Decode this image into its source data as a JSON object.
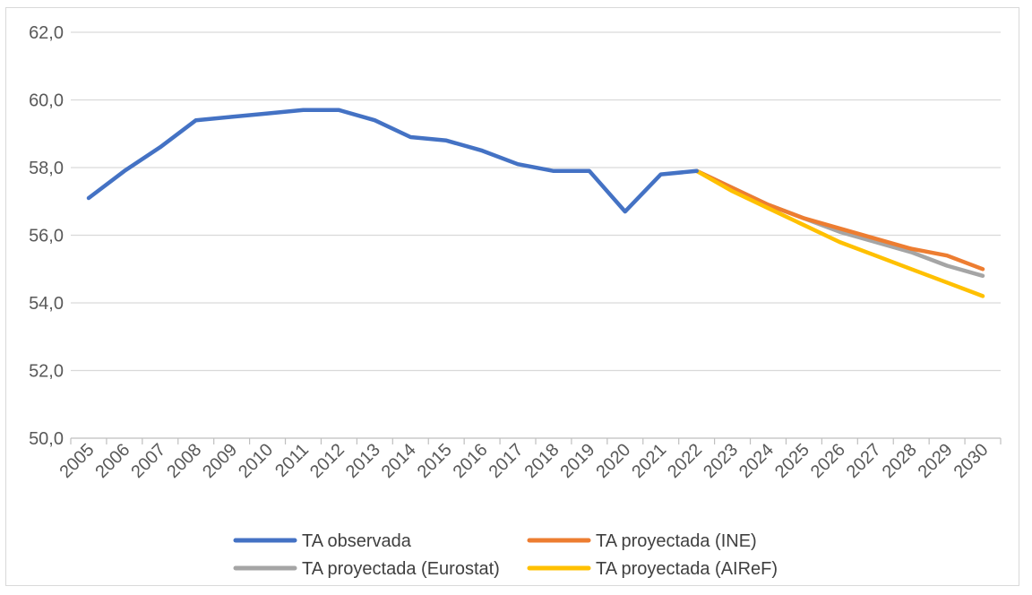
{
  "chart_data": {
    "type": "line",
    "title": "",
    "xlabel": "",
    "ylabel": "",
    "ylim": [
      50,
      62
    ],
    "y_ticks": [
      "50,0",
      "52,0",
      "54,0",
      "56,0",
      "58,0",
      "60,0",
      "62,0"
    ],
    "y_tick_values": [
      50,
      52,
      54,
      56,
      58,
      60,
      62
    ],
    "categories": [
      "2005",
      "2006",
      "2007",
      "2008",
      "2009",
      "2010",
      "2011",
      "2012",
      "2013",
      "2014",
      "2015",
      "2016",
      "2017",
      "2018",
      "2019",
      "2020",
      "2021",
      "2022",
      "2023",
      "2024",
      "2025",
      "2026",
      "2027",
      "2028",
      "2029",
      "2030"
    ],
    "grid": true,
    "legend_position": "bottom",
    "series": [
      {
        "name": "TA observada",
        "color": "#4472c4",
        "values": [
          57.1,
          57.9,
          58.6,
          59.4,
          59.5,
          59.6,
          59.7,
          59.7,
          59.4,
          58.9,
          58.8,
          58.5,
          58.1,
          57.9,
          57.9,
          56.7,
          57.8,
          57.9,
          null,
          null,
          null,
          null,
          null,
          null,
          null,
          null
        ]
      },
      {
        "name": "TA proyectada (INE)",
        "color": "#ed7d31",
        "values": [
          null,
          null,
          null,
          null,
          null,
          null,
          null,
          null,
          null,
          null,
          null,
          null,
          null,
          null,
          null,
          null,
          null,
          57.9,
          57.4,
          56.9,
          56.5,
          56.2,
          55.9,
          55.6,
          55.4,
          55.0
        ]
      },
      {
        "name": "TA proyectada (Eurostat)",
        "color": "#a5a5a5",
        "values": [
          null,
          null,
          null,
          null,
          null,
          null,
          null,
          null,
          null,
          null,
          null,
          null,
          null,
          null,
          null,
          null,
          null,
          57.9,
          57.4,
          56.9,
          56.5,
          56.1,
          55.8,
          55.5,
          55.1,
          54.8
        ]
      },
      {
        "name": "TA proyectada (AIReF)",
        "color": "#ffc000",
        "values": [
          null,
          null,
          null,
          null,
          null,
          null,
          null,
          null,
          null,
          null,
          null,
          null,
          null,
          null,
          null,
          null,
          null,
          57.9,
          57.3,
          56.8,
          56.3,
          55.8,
          55.4,
          55.0,
          54.6,
          54.2
        ]
      }
    ]
  }
}
